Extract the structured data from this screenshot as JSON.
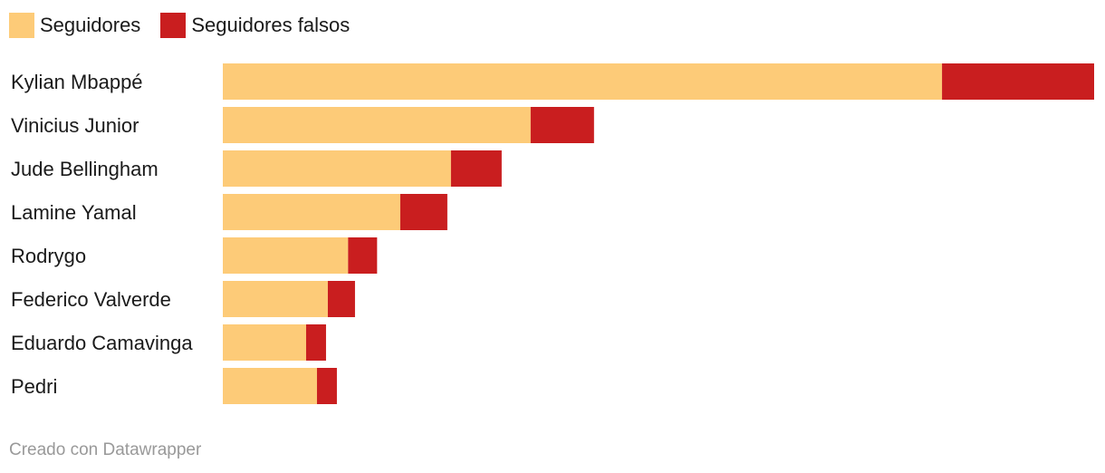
{
  "colors": {
    "seguidores": "#fdcb78",
    "falsos": "#c91e1f"
  },
  "legend": {
    "items": [
      {
        "label": "Seguidores",
        "color": "#fdcb78"
      },
      {
        "label": "Seguidores falsos",
        "color": "#c91e1f"
      }
    ]
  },
  "chart_data": {
    "type": "bar",
    "orientation": "horizontal",
    "stacked": true,
    "categories": [
      "Kylian Mbappé",
      "Vinicius Junior",
      "Jude Bellingham",
      "Lamine Yamal",
      "Rodrygo",
      "Federico Valverde",
      "Eduardo Camavinga",
      "Pedri"
    ],
    "series": [
      {
        "name": "Seguidores",
        "values": [
          99.3,
          42.5,
          31.5,
          24.5,
          17.3,
          14.5,
          11.5,
          13.0
        ]
      },
      {
        "name": "Seguidores falsos",
        "values": [
          21.0,
          8.75,
          7.0,
          6.5,
          4.0,
          3.75,
          2.75,
          2.75
        ]
      }
    ],
    "xlim": [
      0,
      120.3
    ],
    "grid": false,
    "axes_visible": false,
    "legend_position": "top-left"
  },
  "footer": {
    "credit": "Creado con Datawrapper"
  }
}
